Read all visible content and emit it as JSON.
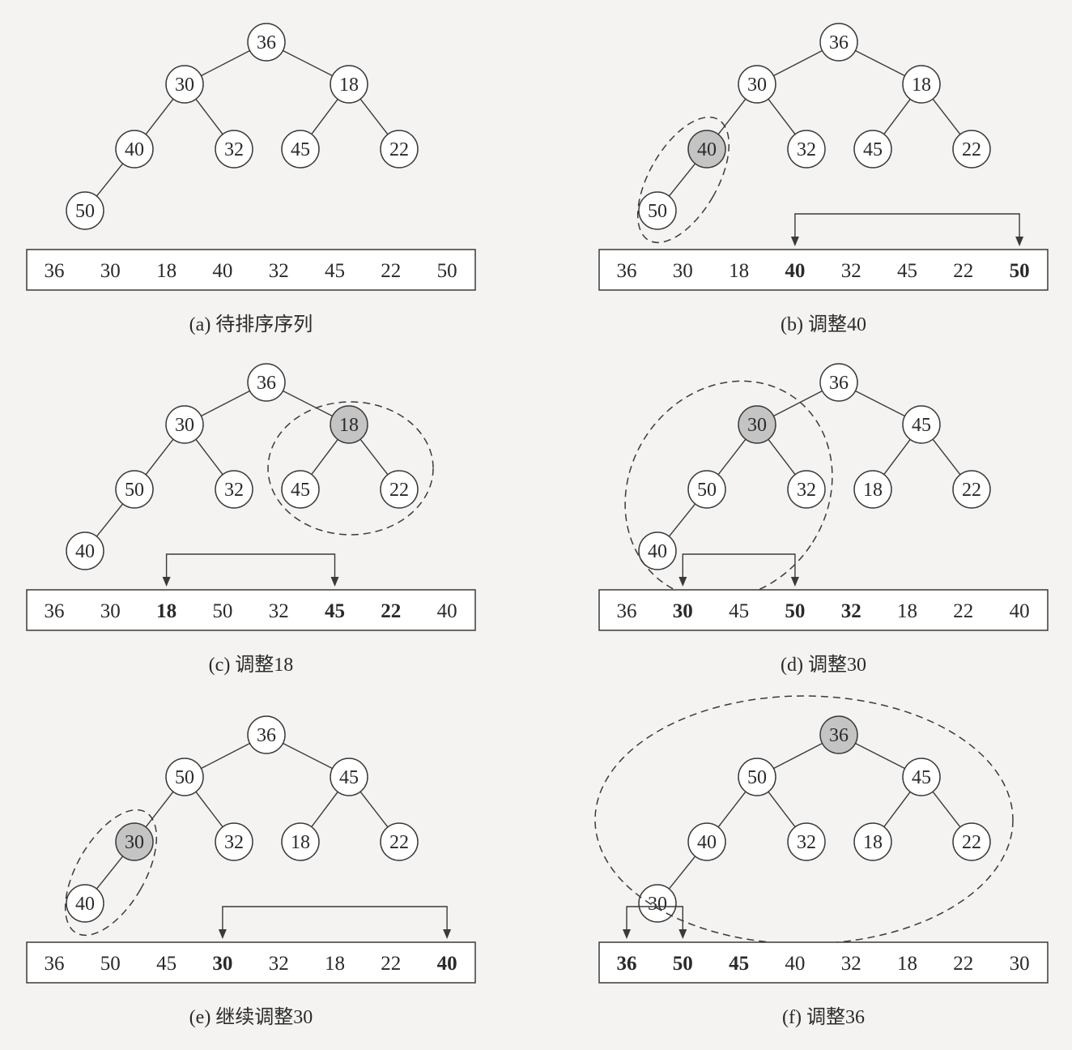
{
  "colors": {
    "background": "#f4f3f1",
    "stroke": "#3a3a3a",
    "node_fill": "#ffffff",
    "highlight_fill": "#c4c4c4",
    "text": "#2a2a2a"
  },
  "panels": [
    {
      "caption": "(a) 待排序序列",
      "nodes": [
        "36",
        "30",
        "18",
        "40",
        "32",
        "45",
        "22",
        "50"
      ],
      "highlight_node": null,
      "circled_subtree": null,
      "array": [
        "36",
        "30",
        "18",
        "40",
        "32",
        "45",
        "22",
        "50"
      ],
      "bold_indices": [],
      "swap_arrow": null
    },
    {
      "caption": "(b) 调整40",
      "nodes": [
        "36",
        "30",
        "18",
        "40",
        "32",
        "45",
        "22",
        "50"
      ],
      "highlight_node": 3,
      "circled_subtree": 3,
      "array": [
        "36",
        "30",
        "18",
        "40",
        "32",
        "45",
        "22",
        "50"
      ],
      "bold_indices": [
        3,
        7
      ],
      "swap_arrow": [
        3,
        7
      ]
    },
    {
      "caption": "(c) 调整18",
      "nodes": [
        "36",
        "30",
        "18",
        "50",
        "32",
        "45",
        "22",
        "40"
      ],
      "highlight_node": 2,
      "circled_subtree": 2,
      "array": [
        "36",
        "30",
        "18",
        "50",
        "32",
        "45",
        "22",
        "40"
      ],
      "bold_indices": [
        2,
        5,
        6
      ],
      "swap_arrow": [
        2,
        5
      ]
    },
    {
      "caption": "(d) 调整30",
      "nodes": [
        "36",
        "30",
        "45",
        "50",
        "32",
        "18",
        "22",
        "40"
      ],
      "highlight_node": 1,
      "circled_subtree": 1,
      "array": [
        "36",
        "30",
        "45",
        "50",
        "32",
        "18",
        "22",
        "40"
      ],
      "bold_indices": [
        1,
        3,
        4
      ],
      "swap_arrow": [
        1,
        3
      ]
    },
    {
      "caption": "(e) 继续调整30",
      "nodes": [
        "36",
        "50",
        "45",
        "30",
        "32",
        "18",
        "22",
        "40"
      ],
      "highlight_node": 3,
      "circled_subtree": 3,
      "array": [
        "36",
        "50",
        "45",
        "30",
        "32",
        "18",
        "22",
        "40"
      ],
      "bold_indices": [
        3,
        7
      ],
      "swap_arrow": [
        3,
        7
      ]
    },
    {
      "caption": "(f) 调整36",
      "nodes": [
        "36",
        "50",
        "45",
        "40",
        "32",
        "18",
        "22",
        "30"
      ],
      "highlight_node": 0,
      "circled_subtree": 0,
      "array": [
        "36",
        "50",
        "45",
        "40",
        "32",
        "18",
        "22",
        "30"
      ],
      "bold_indices": [
        0,
        1,
        2
      ],
      "swap_arrow": [
        0,
        1
      ]
    }
  ]
}
